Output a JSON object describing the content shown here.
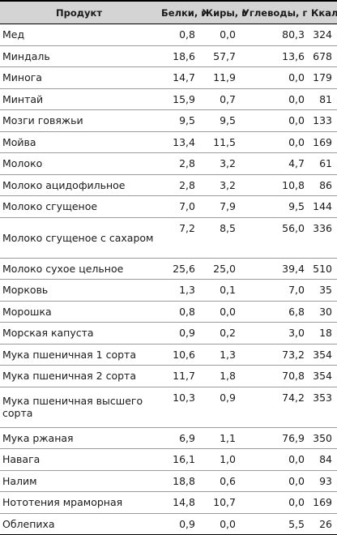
{
  "table": {
    "headers": {
      "product": "Продукт",
      "protein": "Белки, г",
      "fat": "Жиры, г",
      "carbs": "Углеводы, г",
      "kcal": "Ккал"
    },
    "rows": [
      {
        "product": "Мед",
        "protein": "0,8",
        "fat": "0,0",
        "carbs": "80,3",
        "kcal": "324"
      },
      {
        "product": "Миндаль",
        "protein": "18,6",
        "fat": "57,7",
        "carbs": "13,6",
        "kcal": "678"
      },
      {
        "product": "Минога",
        "protein": "14,7",
        "fat": "11,9",
        "carbs": "0,0",
        "kcal": "179"
      },
      {
        "product": "Минтай",
        "protein": "15,9",
        "fat": "0,7",
        "carbs": "0,0",
        "kcal": "81"
      },
      {
        "product": "Мозги говяжьи",
        "protein": "9,5",
        "fat": "9,5",
        "carbs": "0,0",
        "kcal": "133"
      },
      {
        "product": "Мойва",
        "protein": "13,4",
        "fat": "11,5",
        "carbs": "0,0",
        "kcal": "169"
      },
      {
        "product": "Молоко",
        "protein": "2,8",
        "fat": "3,2",
        "carbs": "4,7",
        "kcal": "61"
      },
      {
        "product": "Молоко ацидофильное",
        "protein": "2,8",
        "fat": "3,2",
        "carbs": "10,8",
        "kcal": "86"
      },
      {
        "product": "Молоко сгущеное",
        "protein": "7,0",
        "fat": "7,9",
        "carbs": "9,5",
        "kcal": "144"
      },
      {
        "product": "Молоко сгущеное с сахаром",
        "protein": "7,2",
        "fat": "8,5",
        "carbs": "56,0",
        "kcal": "336"
      },
      {
        "product": "Молоко сухое цельное",
        "protein": "25,6",
        "fat": "25,0",
        "carbs": "39,4",
        "kcal": "510"
      },
      {
        "product": "Морковь",
        "protein": "1,3",
        "fat": "0,1",
        "carbs": "7,0",
        "kcal": "35"
      },
      {
        "product": "Морошка",
        "protein": "0,8",
        "fat": "0,0",
        "carbs": "6,8",
        "kcal": "30"
      },
      {
        "product": "Морская капуста",
        "protein": "0,9",
        "fat": "0,2",
        "carbs": "3,0",
        "kcal": "18"
      },
      {
        "product": "Мука пшеничная 1 сорта",
        "protein": "10,6",
        "fat": "1,3",
        "carbs": "73,2",
        "kcal": "354"
      },
      {
        "product": "Мука пшеничная 2 сорта",
        "protein": "11,7",
        "fat": "1,8",
        "carbs": "70,8",
        "kcal": "354"
      },
      {
        "product": "Мука пшеничная высшего сорта",
        "protein": "10,3",
        "fat": "0,9",
        "carbs": "74,2",
        "kcal": "353"
      },
      {
        "product": "Мука ржаная",
        "protein": "6,9",
        "fat": "1,1",
        "carbs": "76,9",
        "kcal": "350"
      },
      {
        "product": "Навага",
        "protein": "16,1",
        "fat": "1,0",
        "carbs": "0,0",
        "kcal": "84"
      },
      {
        "product": "Налим",
        "protein": "18,8",
        "fat": "0,6",
        "carbs": "0,0",
        "kcal": "93"
      },
      {
        "product": "Нототения мраморная",
        "protein": "14,8",
        "fat": "10,7",
        "carbs": "0,0",
        "kcal": "169"
      },
      {
        "product": "Облепиха",
        "protein": "0,9",
        "fat": "0,0",
        "carbs": "5,5",
        "kcal": "26"
      }
    ]
  }
}
